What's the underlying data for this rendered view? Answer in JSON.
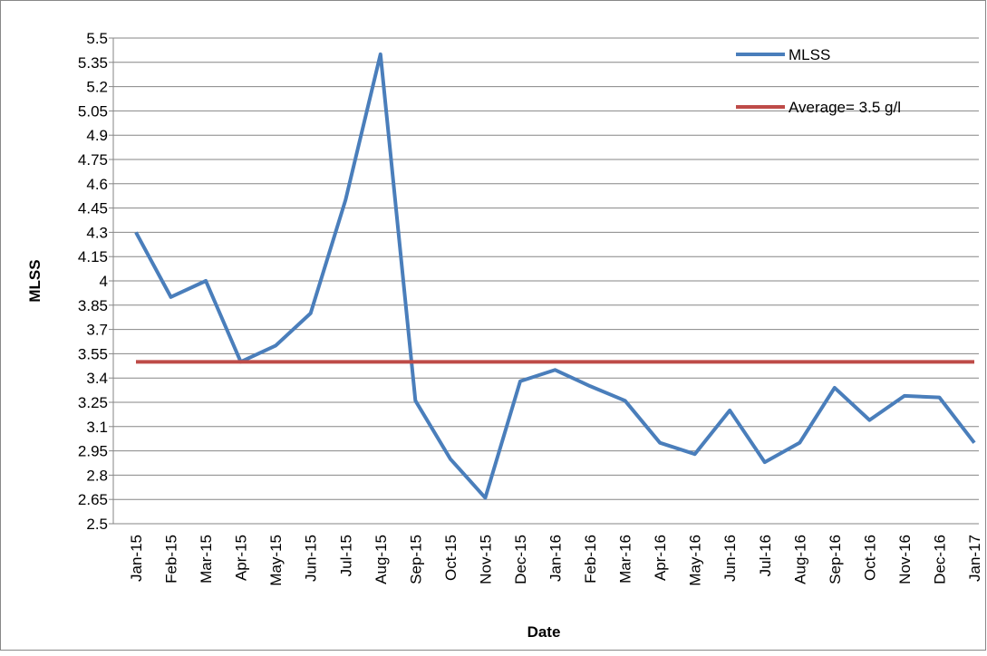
{
  "chart_data": {
    "type": "line",
    "x_label": "Date",
    "y_label": "MLSS",
    "categories": [
      "Jan-15",
      "Feb-15",
      "Mar-15",
      "Apr-15",
      "May-15",
      "Jun-15",
      "Jul-15",
      "Aug-15",
      "Sep-15",
      "Oct-15",
      "Nov-15",
      "Dec-15",
      "Jan-16",
      "Feb-16",
      "Mar-16",
      "Apr-16",
      "May-16",
      "Jun-16",
      "Jul-16",
      "Aug-16",
      "Sep-16",
      "Oct-16",
      "Nov-16",
      "Dec-16",
      "Jan-17"
    ],
    "series": [
      {
        "name": "MLSS",
        "color": "#4a7ebb",
        "values": [
          4.3,
          3.9,
          4.0,
          3.5,
          3.6,
          3.8,
          4.5,
          5.4,
          3.26,
          2.9,
          2.66,
          3.38,
          3.45,
          3.35,
          3.26,
          3.0,
          2.93,
          3.2,
          2.88,
          3.0,
          3.34,
          3.14,
          3.29,
          3.28,
          3.0
        ]
      },
      {
        "name": "Average= 3.5 g/l",
        "color": "#be4b48",
        "values": [
          3.5,
          3.5,
          3.5,
          3.5,
          3.5,
          3.5,
          3.5,
          3.5,
          3.5,
          3.5,
          3.5,
          3.5,
          3.5,
          3.5,
          3.5,
          3.5,
          3.5,
          3.5,
          3.5,
          3.5,
          3.5,
          3.5,
          3.5,
          3.5,
          3.5
        ]
      }
    ],
    "ylim": [
      2.5,
      5.5
    ],
    "yticks": [
      2.5,
      2.65,
      2.8,
      2.95,
      3.1,
      3.25,
      3.4,
      3.55,
      3.7,
      3.85,
      4,
      4.15,
      4.3,
      4.45,
      4.6,
      4.75,
      4.9,
      5.05,
      5.2,
      5.35,
      5.5
    ],
    "grid": true,
    "legend": "top-right"
  }
}
